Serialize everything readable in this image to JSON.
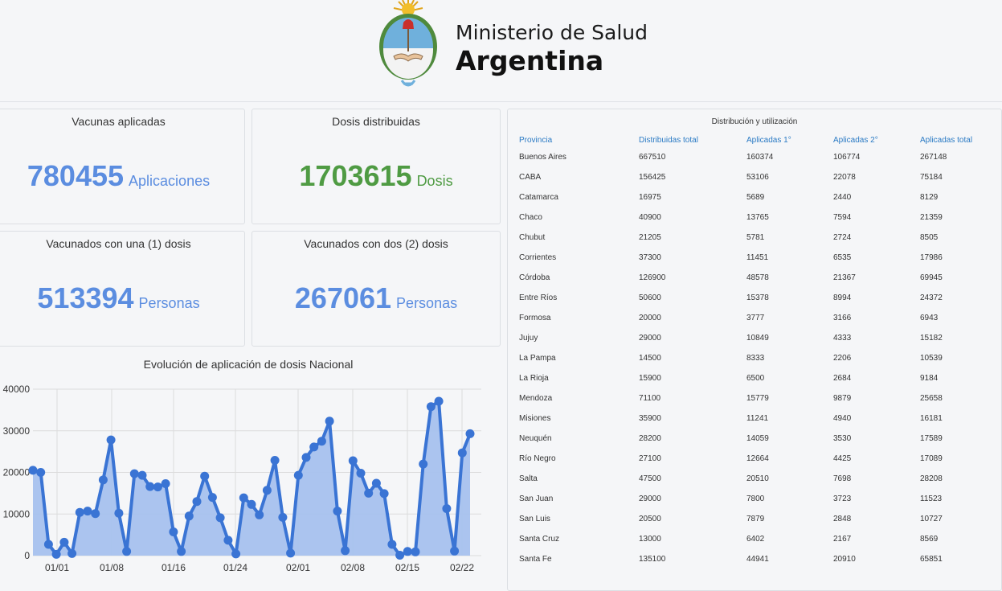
{
  "header": {
    "ministry": "Ministerio de Salud",
    "country": "Argentina"
  },
  "cards": [
    {
      "title": "Vacunas aplicadas",
      "value": "780455",
      "unit": "Aplicaciones",
      "color": "#5b8de0"
    },
    {
      "title": "Dosis distribuidas",
      "value": "1703615",
      "unit": "Dosis",
      "color": "#4f9b43"
    },
    {
      "title": "Vacunados con una (1) dosis",
      "value": "513394",
      "unit": "Personas",
      "color": "#5b8de0"
    },
    {
      "title": "Vacunados con dos (2) dosis",
      "value": "267061",
      "unit": "Personas",
      "color": "#5b8de0"
    }
  ],
  "chart_data": {
    "type": "area",
    "title": "Evolución de aplicación de dosis Nacional",
    "xlabel": "",
    "ylabel": "",
    "ylim": [
      0,
      40000
    ],
    "yticks": [
      "0",
      "10000",
      "20000",
      "30000",
      "40000"
    ],
    "xticks": [
      "01/01",
      "01/08",
      "01/16",
      "01/24",
      "02/01",
      "02/08",
      "02/15",
      "02/22"
    ],
    "grid": true,
    "series_color": "#3a74d4",
    "fill_color": "#a7c1ee",
    "values": [
      20500,
      20000,
      2700,
      300,
      3200,
      500,
      10400,
      10700,
      10100,
      18200,
      27800,
      10200,
      1000,
      19700,
      19300,
      16600,
      16500,
      17300,
      5700,
      1000,
      9500,
      13000,
      19100,
      14000,
      9100,
      3700,
      400,
      13900,
      12300,
      9800,
      15700,
      22900,
      9200,
      600,
      19300,
      23600,
      26100,
      27500,
      32300,
      10700,
      1200,
      22800,
      19800,
      15000,
      17400,
      14900,
      2700,
      100,
      1000,
      900,
      22000,
      35800,
      37100,
      11300,
      1100,
      24700,
      29300
    ]
  },
  "table": {
    "title": "Distribución y utilización",
    "headers": [
      "Provincia",
      "Distribuidas total",
      "Aplicadas 1°",
      "Aplicadas 2°",
      "Aplicadas total"
    ],
    "rows": [
      [
        "Buenos Aires",
        "667510",
        "160374",
        "106774",
        "267148"
      ],
      [
        "CABA",
        "156425",
        "53106",
        "22078",
        "75184"
      ],
      [
        "Catamarca",
        "16975",
        "5689",
        "2440",
        "8129"
      ],
      [
        "Chaco",
        "40900",
        "13765",
        "7594",
        "21359"
      ],
      [
        "Chubut",
        "21205",
        "5781",
        "2724",
        "8505"
      ],
      [
        "Corrientes",
        "37300",
        "11451",
        "6535",
        "17986"
      ],
      [
        "Córdoba",
        "126900",
        "48578",
        "21367",
        "69945"
      ],
      [
        "Entre Ríos",
        "50600",
        "15378",
        "8994",
        "24372"
      ],
      [
        "Formosa",
        "20000",
        "3777",
        "3166",
        "6943"
      ],
      [
        "Jujuy",
        "29000",
        "10849",
        "4333",
        "15182"
      ],
      [
        "La Pampa",
        "14500",
        "8333",
        "2206",
        "10539"
      ],
      [
        "La Rioja",
        "15900",
        "6500",
        "2684",
        "9184"
      ],
      [
        "Mendoza",
        "71100",
        "15779",
        "9879",
        "25658"
      ],
      [
        "Misiones",
        "35900",
        "11241",
        "4940",
        "16181"
      ],
      [
        "Neuquén",
        "28200",
        "14059",
        "3530",
        "17589"
      ],
      [
        "Río Negro",
        "27100",
        "12664",
        "4425",
        "17089"
      ],
      [
        "Salta",
        "47500",
        "20510",
        "7698",
        "28208"
      ],
      [
        "San Juan",
        "29000",
        "7800",
        "3723",
        "11523"
      ],
      [
        "San Luis",
        "20500",
        "7879",
        "2848",
        "10727"
      ],
      [
        "Santa Cruz",
        "13000",
        "6402",
        "2167",
        "8569"
      ],
      [
        "Santa Fe",
        "135100",
        "44941",
        "20910",
        "65851"
      ]
    ]
  }
}
